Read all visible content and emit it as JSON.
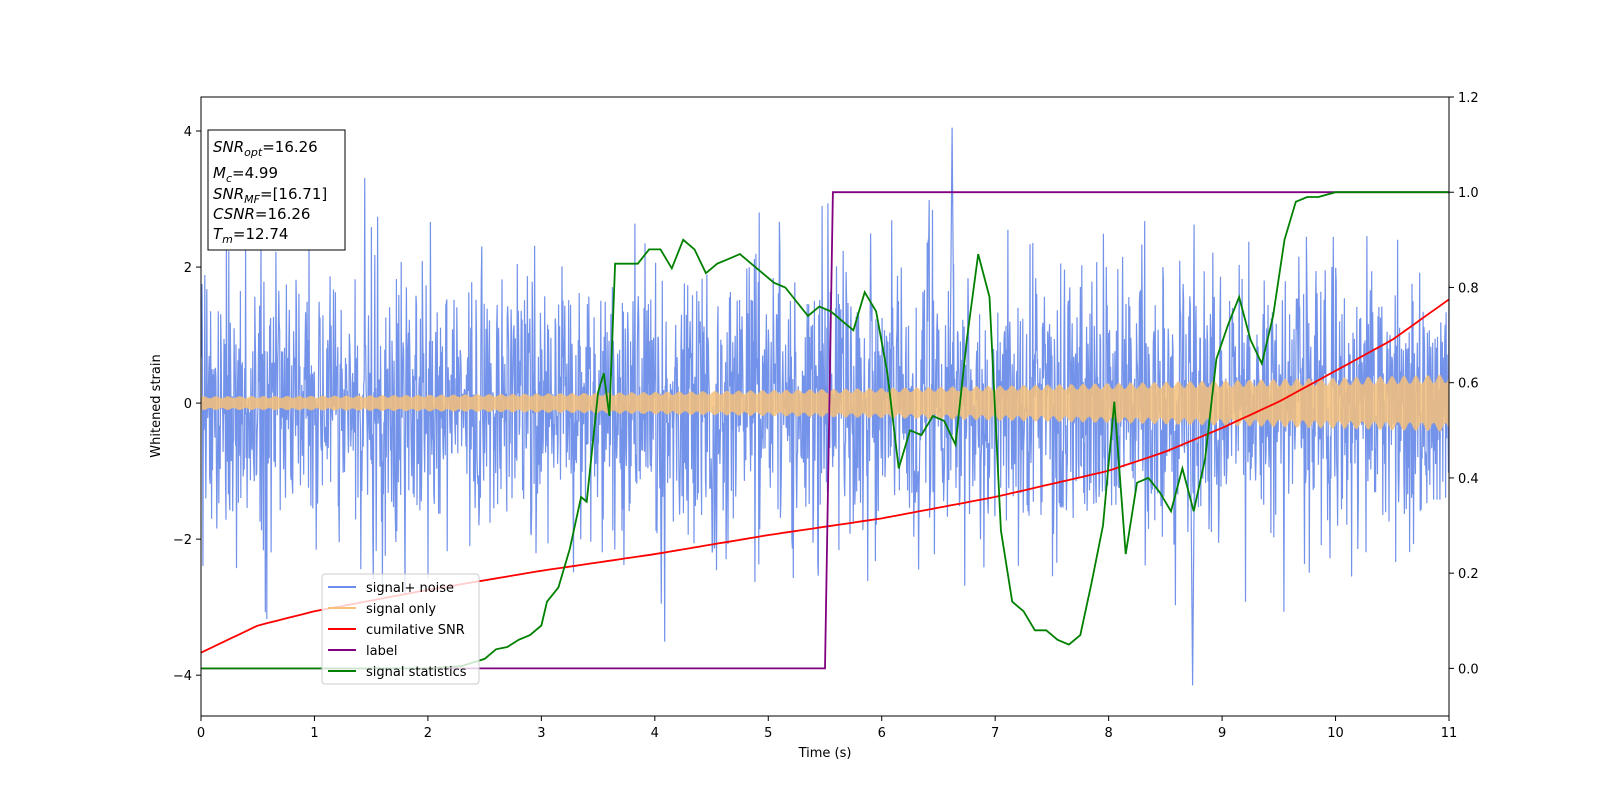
{
  "chart_data": {
    "type": "line",
    "xlabel": "Time (s)",
    "ylabel": "Whitened strain",
    "xlim": [
      0,
      11
    ],
    "ylim_left": [
      -4.6,
      4.5
    ],
    "ylim_right": [
      -0.1,
      1.2
    ],
    "xticks": [
      "0",
      "1",
      "2",
      "3",
      "4",
      "5",
      "6",
      "7",
      "8",
      "9",
      "10",
      "11"
    ],
    "yticks_left": [
      "−4",
      "−2",
      "0",
      "2",
      "4"
    ],
    "yticks_left_values": [
      -4,
      -2,
      0,
      2,
      4
    ],
    "yticks_right": [
      "0.0",
      "0.2",
      "0.4",
      "0.6",
      "0.8",
      "1.0",
      "1.2"
    ],
    "yticks_right_values": [
      0.0,
      0.2,
      0.4,
      0.6,
      0.8,
      1.0,
      1.2
    ],
    "grid": false,
    "legend_position": "lower-left",
    "series": [
      {
        "name": "signal+ noise",
        "color": "#6b8ce8",
        "axis": "left",
        "kind": "noise",
        "approx_band": [
          -2.2,
          2.2
        ],
        "extremes": [
          4.05,
          -4.15
        ]
      },
      {
        "name": "signal only",
        "color": "#f5c07a",
        "axis": "left",
        "kind": "chirp",
        "amplitude_start": 0.1,
        "amplitude_end": 0.42
      },
      {
        "name": "cumilative SNR",
        "color": "#ff0000",
        "axis": "right",
        "x": [
          0,
          0.5,
          1,
          2,
          3,
          4,
          5,
          6,
          7,
          8,
          8.5,
          9,
          9.5,
          10,
          10.5,
          11
        ],
        "values": [
          0.033,
          0.09,
          0.12,
          0.165,
          0.205,
          0.24,
          0.28,
          0.315,
          0.36,
          0.415,
          0.455,
          0.505,
          0.56,
          0.625,
          0.69,
          0.775
        ]
      },
      {
        "name": "label",
        "color": "#800080",
        "axis": "right",
        "x": [
          0,
          5.5,
          5.57,
          11
        ],
        "values": [
          0.0,
          0.0,
          1.0,
          1.0
        ]
      },
      {
        "name": "signal statistics",
        "color": "#008000",
        "axis": "right",
        "x": [
          0,
          1,
          2,
          2.3,
          2.5,
          2.6,
          2.7,
          2.8,
          2.9,
          3.0,
          3.05,
          3.15,
          3.25,
          3.35,
          3.4,
          3.5,
          3.55,
          3.6,
          3.65,
          3.75,
          3.85,
          3.95,
          4.05,
          4.15,
          4.25,
          4.35,
          4.45,
          4.55,
          4.65,
          4.75,
          4.85,
          4.95,
          5.05,
          5.15,
          5.25,
          5.35,
          5.45,
          5.55,
          5.65,
          5.75,
          5.85,
          5.95,
          6.05,
          6.15,
          6.25,
          6.35,
          6.45,
          6.55,
          6.65,
          6.75,
          6.85,
          6.95,
          7.05,
          7.15,
          7.25,
          7.35,
          7.45,
          7.55,
          7.65,
          7.75,
          7.85,
          7.95,
          8.05,
          8.15,
          8.25,
          8.35,
          8.45,
          8.55,
          8.65,
          8.75,
          8.85,
          8.95,
          9.05,
          9.15,
          9.25,
          9.35,
          9.45,
          9.55,
          9.65,
          9.75,
          9.85,
          10.0,
          10.5,
          11.0
        ],
        "values": [
          0.0,
          0.0,
          0.0,
          0.005,
          0.02,
          0.04,
          0.045,
          0.06,
          0.07,
          0.09,
          0.14,
          0.17,
          0.25,
          0.36,
          0.35,
          0.58,
          0.62,
          0.53,
          0.85,
          0.85,
          0.85,
          0.88,
          0.88,
          0.84,
          0.9,
          0.88,
          0.83,
          0.85,
          0.86,
          0.87,
          0.85,
          0.83,
          0.81,
          0.8,
          0.77,
          0.74,
          0.76,
          0.75,
          0.73,
          0.71,
          0.79,
          0.75,
          0.62,
          0.42,
          0.5,
          0.49,
          0.53,
          0.52,
          0.47,
          0.69,
          0.87,
          0.78,
          0.29,
          0.14,
          0.12,
          0.08,
          0.08,
          0.06,
          0.05,
          0.07,
          0.18,
          0.3,
          0.56,
          0.24,
          0.39,
          0.4,
          0.37,
          0.33,
          0.42,
          0.33,
          0.44,
          0.65,
          0.72,
          0.78,
          0.69,
          0.64,
          0.74,
          0.9,
          0.98,
          0.99,
          0.99,
          1.0,
          1.0,
          1.0
        ]
      }
    ],
    "annotation": {
      "lines": [
        {
          "main": "SNR",
          "sub": "opt",
          "value": "=16.26"
        },
        {
          "main": "M",
          "sub": "c",
          "value": "=4.99"
        },
        {
          "main": "SNR",
          "sub": "MF",
          "value": "=[16.71]"
        },
        {
          "main": "CSNR",
          "sub": "",
          "value": "=16.26"
        },
        {
          "main": "T",
          "sub": "m",
          "value": "=12.74"
        }
      ]
    }
  }
}
